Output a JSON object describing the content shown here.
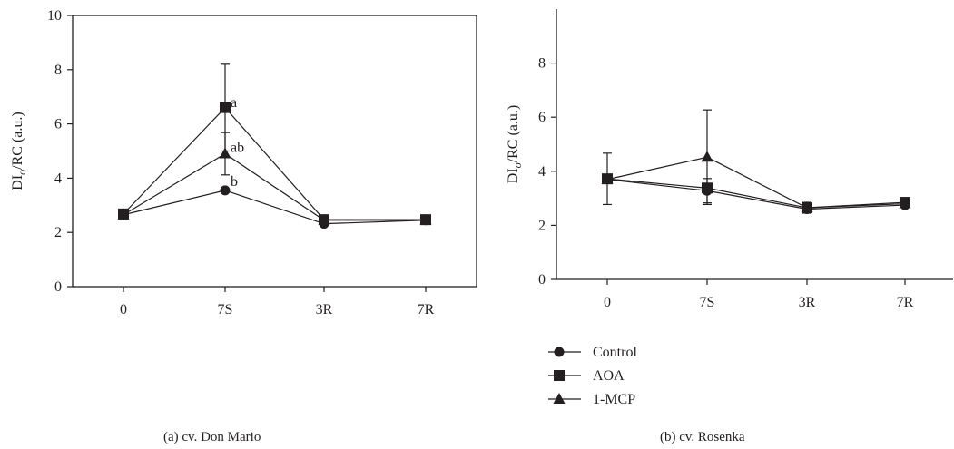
{
  "chart_data": [
    {
      "type": "line",
      "caption": "(a)  cv. Don Mario",
      "ylabel": {
        "main": "DI",
        "sub": "o",
        "rest": "/RC (a.u.)"
      },
      "categories": [
        "0",
        "7S",
        "3R",
        "7R"
      ],
      "ylim": [
        0,
        10
      ],
      "yticks": [
        0,
        2,
        4,
        6,
        8,
        10
      ],
      "grid": false,
      "series": [
        {
          "name": "Control",
          "marker": "circle",
          "values": [
            2.65,
            3.55,
            2.32,
            2.45
          ],
          "errors": [
            null,
            null,
            null,
            null
          ]
        },
        {
          "name": "AOA",
          "marker": "square",
          "values": [
            2.68,
            6.6,
            2.47,
            2.47
          ],
          "errors": [
            null,
            1.6,
            null,
            null
          ]
        },
        {
          "name": "1-MCP",
          "marker": "triangle",
          "values": [
            2.65,
            4.9,
            2.45,
            2.45
          ],
          "errors": [
            null,
            0.78,
            null,
            null
          ]
        }
      ],
      "annotations": [
        {
          "text": "a",
          "x": "7S",
          "y": 6.75
        },
        {
          "text": "ab",
          "x": "7S",
          "y": 5.1
        },
        {
          "text": "b",
          "x": "7S",
          "y": 3.85
        }
      ]
    },
    {
      "type": "line",
      "caption": "(b)  cv. Rosenka",
      "ylabel": {
        "main": "DI",
        "sub": "o",
        "rest": "/RC (a.u.)"
      },
      "categories": [
        "0",
        "7S",
        "3R",
        "7R"
      ],
      "ylim": [
        0,
        10
      ],
      "yticks": [
        0,
        2,
        4,
        6,
        8
      ],
      "grid": false,
      "series": [
        {
          "name": "Control",
          "marker": "circle",
          "values": [
            3.7,
            3.28,
            2.6,
            2.75
          ],
          "errors": [
            null,
            0.45,
            null,
            null
          ]
        },
        {
          "name": "AOA",
          "marker": "square",
          "values": [
            3.72,
            3.38,
            2.65,
            2.85
          ],
          "errors": [
            0.95,
            null,
            0.2,
            null
          ]
        },
        {
          "name": "1-MCP",
          "marker": "triangle",
          "values": [
            3.7,
            4.52,
            2.65,
            2.8
          ],
          "errors": [
            null,
            1.75,
            null,
            null
          ]
        }
      ],
      "annotations": []
    }
  ],
  "legend": {
    "position": "below panel (b), left",
    "items": [
      {
        "label": "Control",
        "marker": "circle"
      },
      {
        "label": "AOA",
        "marker": "square"
      },
      {
        "label": "1-MCP",
        "marker": "triangle"
      }
    ]
  }
}
